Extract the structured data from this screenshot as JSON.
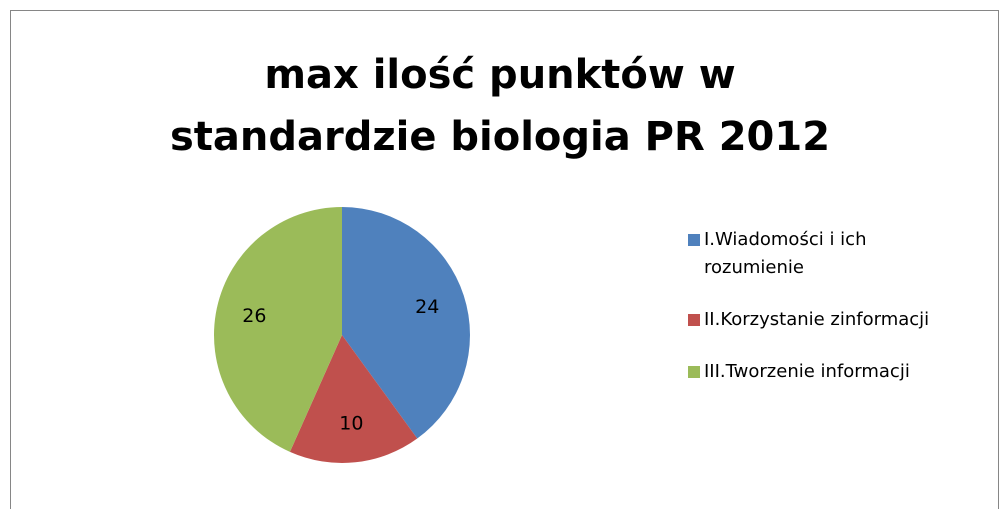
{
  "chart_data": {
    "type": "pie",
    "title": "max ilość punktów w standardzie biologia PR 2012",
    "categories": [
      "I.Wiadomości i ich rozumienie",
      "II.Korzystanie zinformacji",
      "III.Tworzenie informacji"
    ],
    "values": [
      24,
      10,
      26
    ],
    "colors": [
      "#4f81bd",
      "#c0504d",
      "#9bbb59"
    ],
    "legend": "right"
  }
}
